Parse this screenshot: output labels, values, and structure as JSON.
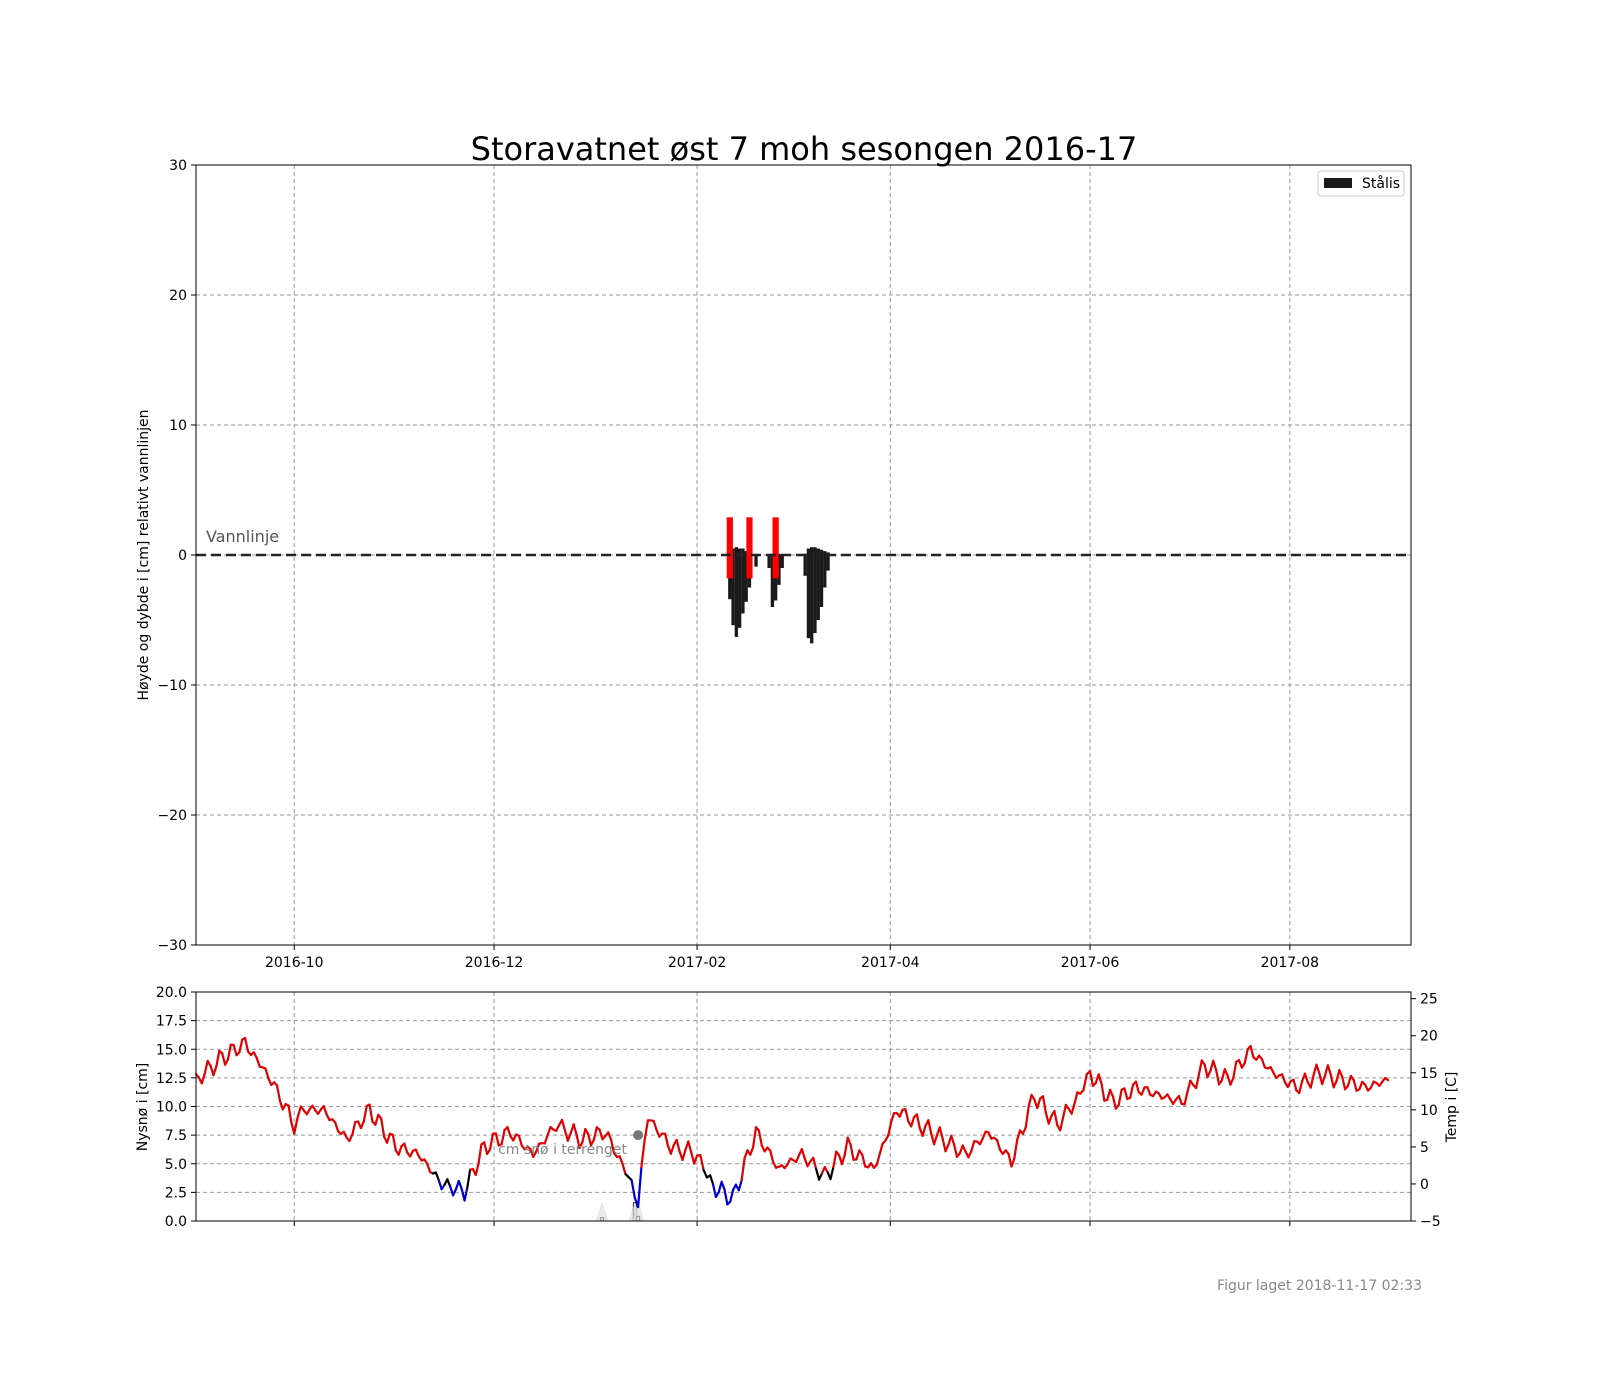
{
  "chart_data": [
    {
      "type": "bar",
      "title": "Storavatnet øst 7 moh sesongen 2016-17",
      "xlabel": "",
      "ylabel": "Høyde og dybde i [cm] relativt vannlinjen",
      "ylim": [
        -30,
        30
      ],
      "xlim": [
        "2016-09-01",
        "2017-09-07"
      ],
      "grid": true,
      "legend_position": "top-right",
      "x_ticks": [
        "2016-10",
        "2016-12",
        "2017-02",
        "2017-04",
        "2017-06",
        "2017-08"
      ],
      "y_ticks": [
        "30",
        "20",
        "10",
        "0",
        "−10",
        "−20",
        "−30"
      ],
      "waterline": {
        "label": "Vannlinje",
        "value": 0
      },
      "series": [
        {
          "name": "Stålis",
          "color": "#1a1a1a",
          "bars": [
            {
              "date": "2017-02-11",
              "top": 0.5,
              "bottom": -3.4
            },
            {
              "date": "2017-02-12",
              "top": 0.5,
              "bottom": -5.4
            },
            {
              "date": "2017-02-13",
              "top": 0.6,
              "bottom": -6.3
            },
            {
              "date": "2017-02-14",
              "top": 0.5,
              "bottom": -5.6
            },
            {
              "date": "2017-02-15",
              "top": 0.5,
              "bottom": -4.5
            },
            {
              "date": "2017-02-16",
              "top": 0.3,
              "bottom": -3.6
            },
            {
              "date": "2017-02-17",
              "top": 0.1,
              "bottom": -2.5
            },
            {
              "date": "2017-02-19",
              "top": 0.0,
              "bottom": -0.9
            },
            {
              "date": "2017-02-23",
              "top": 0.0,
              "bottom": -1.0
            },
            {
              "date": "2017-02-24",
              "top": 0.1,
              "bottom": -4.0
            },
            {
              "date": "2017-02-25",
              "top": 0.2,
              "bottom": -3.5
            },
            {
              "date": "2017-02-26",
              "top": 0.1,
              "bottom": -2.3
            },
            {
              "date": "2017-02-27",
              "top": 0.0,
              "bottom": -1.0
            },
            {
              "date": "2017-03-06",
              "top": 0.1,
              "bottom": -1.6
            },
            {
              "date": "2017-03-07",
              "top": 0.5,
              "bottom": -6.4
            },
            {
              "date": "2017-03-08",
              "top": 0.6,
              "bottom": -6.8
            },
            {
              "date": "2017-03-09",
              "top": 0.6,
              "bottom": -6.0
            },
            {
              "date": "2017-03-10",
              "top": 0.5,
              "bottom": -5.0
            },
            {
              "date": "2017-03-11",
              "top": 0.4,
              "bottom": -4.0
            },
            {
              "date": "2017-03-12",
              "top": 0.3,
              "bottom": -2.5
            },
            {
              "date": "2017-03-13",
              "top": 0.2,
              "bottom": -1.2
            }
          ]
        },
        {
          "name": "",
          "color": "#ff0000",
          "bars": [
            {
              "date": "2017-02-11",
              "top": 2.9,
              "bottom": -1.8
            },
            {
              "date": "2017-02-17",
              "top": 2.9,
              "bottom": -1.8
            },
            {
              "date": "2017-02-25",
              "top": 2.9,
              "bottom": -1.8
            }
          ]
        }
      ]
    },
    {
      "type": "line",
      "title": "",
      "xlabel": "",
      "ylabel": "Nysnø i [cm]",
      "y2label": "Temp i [C]",
      "ylim": [
        0,
        20
      ],
      "y2lim": [
        -5,
        25.9
      ],
      "xlim": [
        "2016-09-01",
        "2017-09-07"
      ],
      "grid": true,
      "y_ticks": [
        "0.0",
        "2.5",
        "5.0",
        "7.5",
        "10.0",
        "12.5",
        "15.0",
        "17.5",
        "20.0"
      ],
      "y2_ticks": [
        "−5",
        "0",
        "5",
        "10",
        "15",
        "20",
        "25"
      ],
      "annotation": "cm snø i terrenget",
      "marker": {
        "date": "2017-01-14",
        "value": 7.5
      },
      "snow_events": [
        {
          "date": "2017-01-03",
          "value": 0.3
        },
        {
          "date": "2017-01-13",
          "value": 1.6
        },
        {
          "date": "2017-01-14",
          "value": 0.4
        }
      ],
      "temperature": {
        "color_above_zero": "#e00000",
        "color_near_zero": "#000000",
        "color_below_zero": "#0000cc",
        "dates": [
          "2016-09-01",
          "2016-09-09",
          "2016-09-16",
          "2016-09-24",
          "2016-10-01",
          "2016-10-04",
          "2016-10-10",
          "2016-10-17",
          "2016-10-24",
          "2016-11-01",
          "2016-11-08",
          "2016-11-15",
          "2016-11-22",
          "2016-11-28",
          "2016-12-06",
          "2016-12-13",
          "2016-12-20",
          "2016-12-28",
          "2017-01-04",
          "2017-01-11",
          "2017-01-14",
          "2017-01-17",
          "2017-01-24",
          "2017-02-01",
          "2017-02-05",
          "2017-02-12",
          "2017-02-19",
          "2017-02-26",
          "2017-03-05",
          "2017-03-12",
          "2017-03-19",
          "2017-03-27",
          "2017-04-03",
          "2017-04-10",
          "2017-04-17",
          "2017-04-24",
          "2017-05-01",
          "2017-05-08",
          "2017-05-15",
          "2017-05-22",
          "2017-05-29",
          "2017-06-01",
          "2017-06-08",
          "2017-06-15",
          "2017-06-22",
          "2017-06-29",
          "2017-07-06",
          "2017-07-13",
          "2017-07-20",
          "2017-07-27",
          "2017-08-03",
          "2017-08-10",
          "2017-08-17",
          "2017-08-24",
          "2017-08-31"
        ],
        "values": [
          14,
          17,
          19,
          14,
          8,
          10,
          10,
          6,
          10,
          5,
          4,
          0,
          -1,
          5,
          7,
          4,
          8,
          6,
          7,
          1,
          -2,
          9,
          5,
          4,
          0,
          -2,
          7,
          2,
          4,
          1,
          5,
          2,
          10,
          8,
          6,
          4,
          7,
          3,
          12,
          8,
          12,
          15,
          11,
          13,
          12,
          11,
          16,
          14,
          18,
          15,
          13,
          15,
          14,
          13,
          14
        ]
      }
    }
  ],
  "footer": {
    "created": "Figur laget 2018-11-17 02:33"
  }
}
